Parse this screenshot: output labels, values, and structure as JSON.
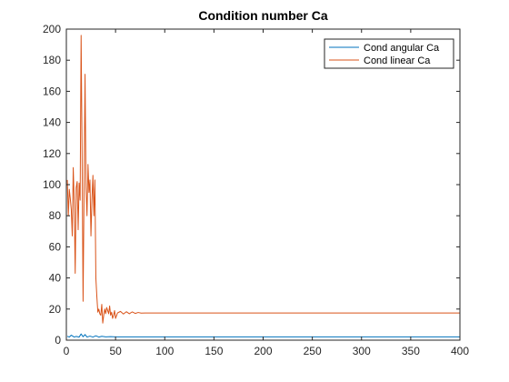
{
  "chart_data": {
    "type": "line",
    "title": "Condition number Ca",
    "xlabel": "",
    "ylabel": "",
    "xlim": [
      0,
      400
    ],
    "ylim": [
      0,
      200
    ],
    "xticks": [
      0,
      50,
      100,
      150,
      200,
      250,
      300,
      350,
      400
    ],
    "yticks": [
      0,
      20,
      40,
      60,
      80,
      100,
      120,
      140,
      160,
      180,
      200
    ],
    "grid": false,
    "legend_position": "top-right",
    "series": [
      {
        "name": "Cond angular Ca",
        "color": "#0072BD",
        "x": [
          1,
          3,
          5,
          8,
          10,
          13,
          15,
          17,
          19,
          21,
          24,
          27,
          30,
          33,
          36,
          40,
          45,
          50,
          60,
          100,
          200,
          300,
          400
        ],
        "y": [
          2.5,
          2.0,
          3.2,
          2.0,
          2.4,
          2.0,
          4.0,
          2.2,
          3.6,
          2.0,
          2.6,
          2.0,
          2.8,
          2.0,
          2.5,
          2.1,
          2.3,
          2.1,
          2.1,
          2.1,
          2.1,
          2.1,
          2.1
        ]
      },
      {
        "name": "Cond linear Ca",
        "color": "#D95319",
        "x": [
          1,
          2,
          3,
          4,
          5,
          6,
          7,
          8,
          9,
          10,
          11,
          12,
          13,
          14,
          15,
          16,
          17,
          18,
          19,
          20,
          21,
          22,
          23,
          24,
          25,
          26,
          27,
          28,
          29,
          30,
          31,
          32,
          33,
          34,
          35,
          36,
          37,
          38,
          39,
          40,
          41,
          42,
          43,
          44,
          45,
          46,
          47,
          48,
          49,
          50,
          52,
          55,
          58,
          61,
          64,
          67,
          70,
          73,
          76,
          80,
          90,
          100,
          150,
          200,
          250,
          300,
          350,
          400
        ],
        "y": [
          103,
          80,
          97,
          91,
          84,
          67,
          111,
          88,
          43,
          98,
          102,
          71,
          101,
          90,
          196,
          120,
          25,
          96,
          171,
          98,
          80,
          113,
          95,
          103,
          67,
          90,
          106,
          80,
          103,
          40,
          28,
          18,
          20,
          17,
          16,
          23,
          11,
          16,
          20,
          17,
          21,
          19,
          17,
          22,
          16,
          18,
          14,
          16,
          19,
          14,
          17.5,
          18.5,
          16.8,
          18.3,
          17.0,
          18.2,
          17.2,
          17.8,
          17.4,
          17.5,
          17.5,
          17.5,
          17.5,
          17.5,
          17.5,
          17.5,
          17.5,
          17.5
        ]
      }
    ]
  }
}
